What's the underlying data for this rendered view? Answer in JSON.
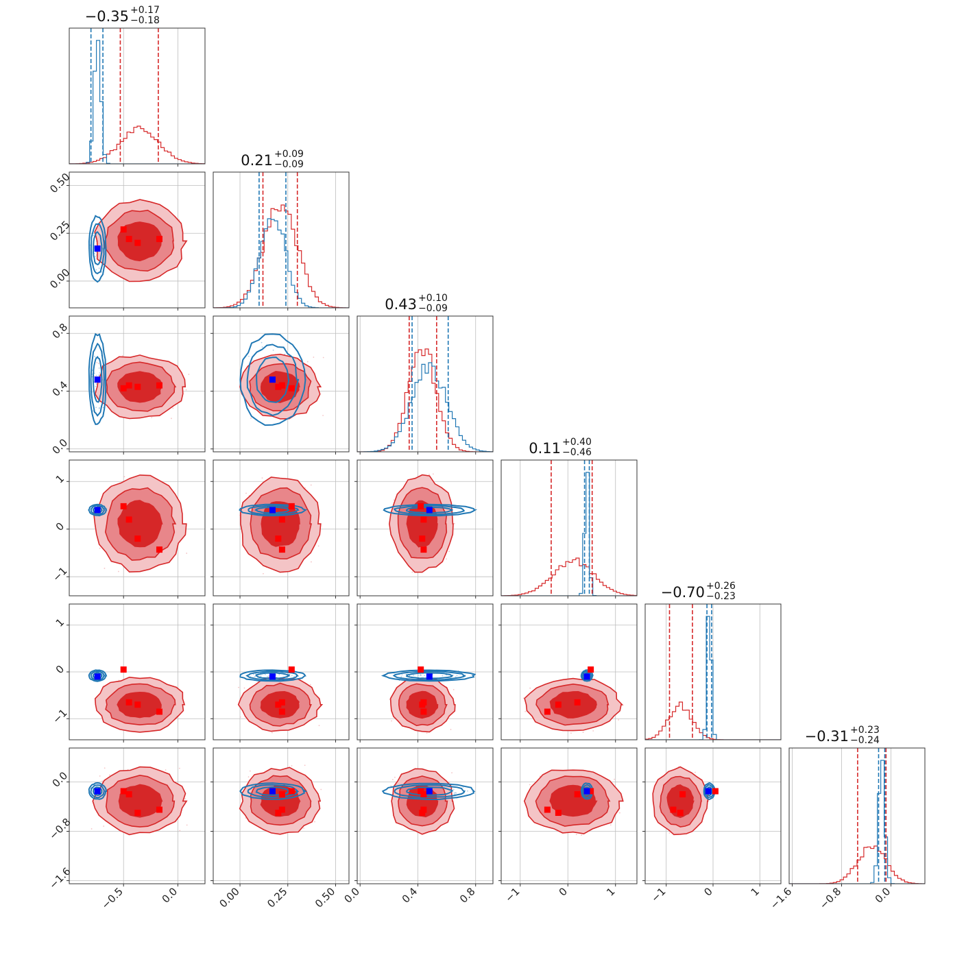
{
  "chart_data": {
    "type": "corner",
    "grid": true,
    "colors": {
      "red": "#d62728",
      "red_mid": "#e8868a",
      "red_light": "#f4c4c6",
      "blue": "#1f77b4",
      "blue_point": "#0000ff",
      "red_point": "#ff0000"
    },
    "params": [
      {
        "title_value": "−0.35",
        "title_plus": "+0.17",
        "title_minus": "−0.18",
        "range": [
          -1.0,
          0.25
        ],
        "ticks": [
          -0.5,
          0.0
        ],
        "tick_labels": [
          "−0.5",
          "0.0"
        ],
        "red": {
          "mean": -0.35,
          "sd": 0.18,
          "q": [
            -0.53,
            -0.18
          ]
        },
        "blue": {
          "mean": -0.74,
          "sd": 0.03,
          "q": [
            -0.8,
            -0.69
          ]
        },
        "truth_blue": -0.74,
        "truth_red": [
          -0.5,
          -0.45,
          -0.37,
          -0.17
        ]
      },
      {
        "title_value": "0.21",
        "title_plus": "+0.09",
        "title_minus": "−0.09",
        "range": [
          -0.14,
          0.57
        ],
        "ticks": [
          0.0,
          0.25,
          0.5
        ],
        "tick_labels": [
          "0.00",
          "0.25",
          "0.50"
        ],
        "y_ticks": [
          0.0,
          0.25,
          0.5
        ],
        "y_tick_labels": [
          "0.00",
          "0.25",
          "0.50"
        ],
        "red": {
          "mean": 0.21,
          "sd": 0.09,
          "q": [
            0.12,
            0.3
          ]
        },
        "blue": {
          "mean": 0.17,
          "sd": 0.065,
          "q": [
            0.1,
            0.24
          ]
        },
        "truth_blue": 0.17,
        "truth_red": [
          0.27,
          0.22,
          0.2,
          0.22
        ]
      },
      {
        "title_value": "0.43",
        "title_plus": "+0.10",
        "title_minus": "−0.09",
        "range": [
          -0.02,
          0.92
        ],
        "ticks": [
          0.0,
          0.4,
          0.8
        ],
        "tick_labels": [
          "0.0",
          "0.4",
          "0.8"
        ],
        "y_ticks": [
          0.0,
          0.4,
          0.8
        ],
        "y_tick_labels": [
          "0.0",
          "0.4",
          "0.8"
        ],
        "red": {
          "mean": 0.43,
          "sd": 0.095,
          "q": [
            0.34,
            0.53
          ]
        },
        "blue": {
          "mean": 0.48,
          "sd": 0.12,
          "q": [
            0.36,
            0.61
          ]
        },
        "truth_blue": 0.48,
        "truth_red": [
          0.42,
          0.44,
          0.43,
          0.44
        ]
      },
      {
        "title_value": "0.11",
        "title_plus": "+0.40",
        "title_minus": "−0.46",
        "range": [
          -1.4,
          1.45
        ],
        "ticks": [
          -1,
          0,
          1
        ],
        "tick_labels": [
          "−1",
          "0",
          "1"
        ],
        "y_ticks": [
          -1,
          0,
          1
        ],
        "y_tick_labels": [
          "−1",
          "0",
          "1"
        ],
        "red": {
          "mean": 0.11,
          "sd": 0.43,
          "q": [
            -0.35,
            0.51
          ]
        },
        "blue": {
          "mean": 0.4,
          "sd": 0.045,
          "q": [
            0.35,
            0.45
          ]
        },
        "truth_blue": 0.4,
        "truth_red": [
          0.48,
          0.2,
          -0.2,
          -0.43
        ]
      },
      {
        "title_value": "−0.70",
        "title_plus": "+0.26",
        "title_minus": "−0.23",
        "range": [
          -1.45,
          1.45
        ],
        "ticks": [
          -1,
          0,
          1
        ],
        "tick_labels": [
          "−1",
          "0",
          "1"
        ],
        "y_ticks": [
          -1,
          0,
          1
        ],
        "y_tick_labels": [
          "−1",
          "0",
          "1"
        ],
        "red": {
          "mean": -0.7,
          "sd": 0.25,
          "q": [
            -0.93,
            -0.44
          ]
        },
        "blue": {
          "mean": -0.08,
          "sd": 0.045,
          "q": [
            -0.13,
            -0.03
          ]
        },
        "truth_blue": -0.1,
        "truth_red": [
          0.05,
          -0.65,
          -0.7,
          -0.85
        ]
      },
      {
        "title_value": "−0.31",
        "title_plus": "+0.23",
        "title_minus": "−0.24",
        "range": [
          -1.65,
          0.55
        ],
        "ticks": [
          -1.6,
          -0.8,
          0.0
        ],
        "tick_labels": [
          "−1.6",
          "−0.8",
          "0.0"
        ],
        "y_ticks": [
          -1.6,
          -0.8,
          0.0
        ],
        "y_tick_labels": [
          "−1.6",
          "−0.8",
          "0.0"
        ],
        "red": {
          "mean": -0.31,
          "sd": 0.23,
          "q": [
            -0.54,
            -0.08
          ]
        },
        "blue": {
          "mean": -0.15,
          "sd": 0.05,
          "q": [
            -0.2,
            -0.1
          ]
        },
        "truth_blue": -0.15,
        "truth_red": [
          -0.15,
          -0.2,
          -0.5,
          -0.45
        ]
      }
    ]
  }
}
